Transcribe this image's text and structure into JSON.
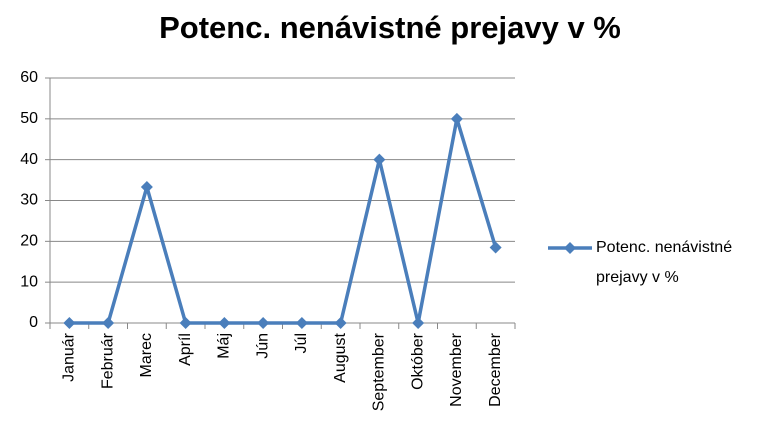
{
  "chart_data": {
    "type": "line",
    "title": "Potenc. nenávistné prejavy v %",
    "categories": [
      "Január",
      "Február",
      "Marec",
      "Apríl",
      "Máj",
      "Jún",
      "Júl",
      "August",
      "September",
      "Október",
      "November",
      "December"
    ],
    "series": [
      {
        "name": "Potenc. nenávistné prejavy v %",
        "color": "#4a7ebb",
        "values": [
          0,
          0,
          33.3,
          0,
          0,
          0,
          0,
          0,
          40,
          0,
          50,
          18.5
        ]
      }
    ],
    "ylim": [
      0,
      60
    ],
    "yticks": [
      0,
      10,
      20,
      30,
      40,
      50,
      60
    ],
    "grid": true,
    "legend": "right"
  }
}
